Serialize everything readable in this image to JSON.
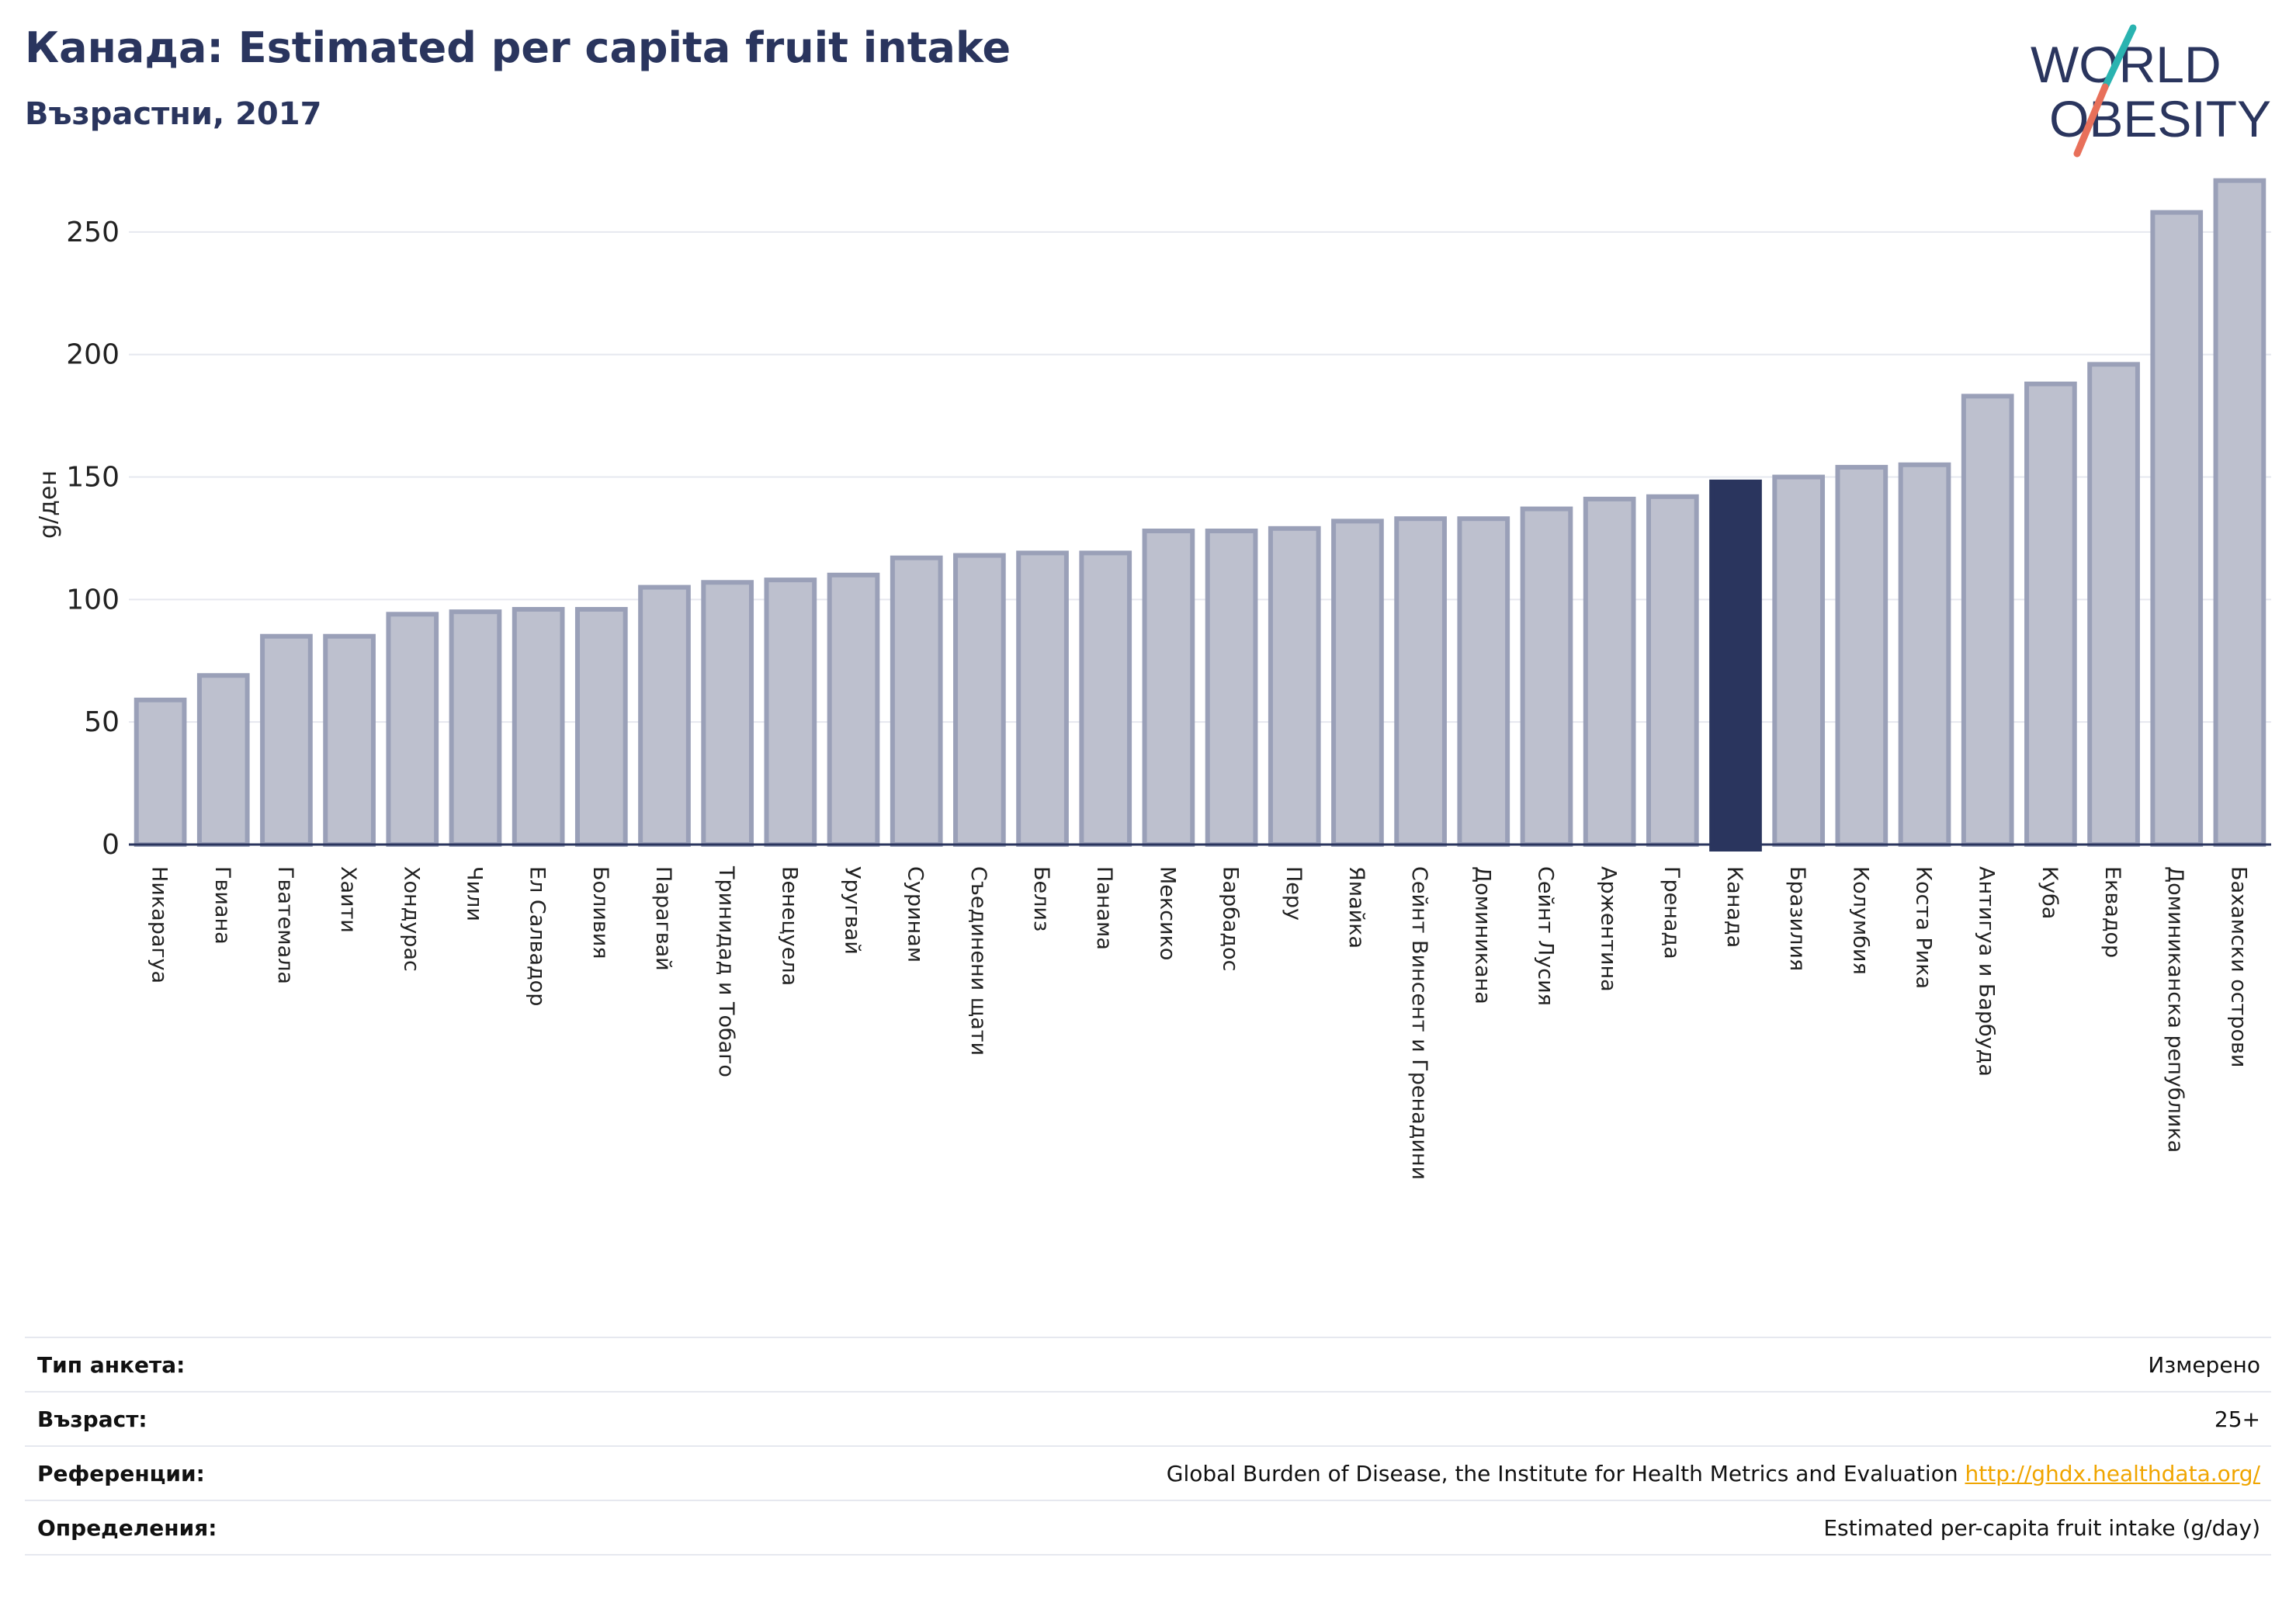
{
  "header": {
    "title": "Канада: Estimated per capita fruit intake",
    "subtitle": "Възрастни, 2017"
  },
  "logo": {
    "line1": "WORLD",
    "line2": "OBESITY",
    "colors": {
      "text": "#2a355e",
      "slash_teal": "#2ab3b0",
      "slash_coral": "#e8705a"
    }
  },
  "colors": {
    "bar_fill": "#bdc0ce",
    "bar_stroke": "#9aa0b8",
    "highlight": "#2a355e",
    "grid": "#e6e8ef",
    "axis": "#2a355e"
  },
  "chart_data": {
    "type": "bar",
    "title": "",
    "xlabel": "",
    "ylabel": "g/ден",
    "ylim": [
      0,
      275
    ],
    "yticks": [
      0,
      50,
      100,
      150,
      200,
      250
    ],
    "grid": true,
    "highlight_category": "Канада",
    "categories": [
      "Никарагуа",
      "Гвиана",
      "Гватемала",
      "Хаити",
      "Хондурас",
      "Чили",
      "Ел Салвадор",
      "Боливия",
      "Парагвай",
      "Тринидад и Тобаго",
      "Венецуела",
      "Уругвай",
      "Суринам",
      "Съединени щати",
      "Белиз",
      "Панама",
      "Мексико",
      "Барбадос",
      "Перу",
      "Ямайка",
      "Сейнт Винсент и Гренадини",
      "Доминикана",
      "Сейнт Лусия",
      "Аржентина",
      "Гренада",
      "Канада",
      "Бразилия",
      "Колумбия",
      "Коста Рика",
      "Антигуа и Барбуда",
      "Куба",
      "Еквадор",
      "Доминиканска република",
      "Бахамски острови"
    ],
    "values": [
      59,
      69,
      85,
      85,
      94,
      95,
      96,
      96,
      105,
      107,
      108,
      110,
      117,
      118,
      119,
      119,
      128,
      128,
      129,
      132,
      133,
      133,
      137,
      141,
      142,
      148,
      150,
      154,
      155,
      183,
      188,
      196,
      258,
      271
    ]
  },
  "meta": [
    {
      "label": "Тип анкета:",
      "value": "Измерено"
    },
    {
      "label": "Възраст:",
      "value": "25+"
    },
    {
      "label": "Референции:",
      "value": "Global Burden of Disease, the Institute for Health Metrics and Evaluation",
      "link": "http://ghdx.healthdata.org/"
    },
    {
      "label": "Определения:",
      "value": "Estimated per-capita fruit intake (g/day)"
    }
  ]
}
